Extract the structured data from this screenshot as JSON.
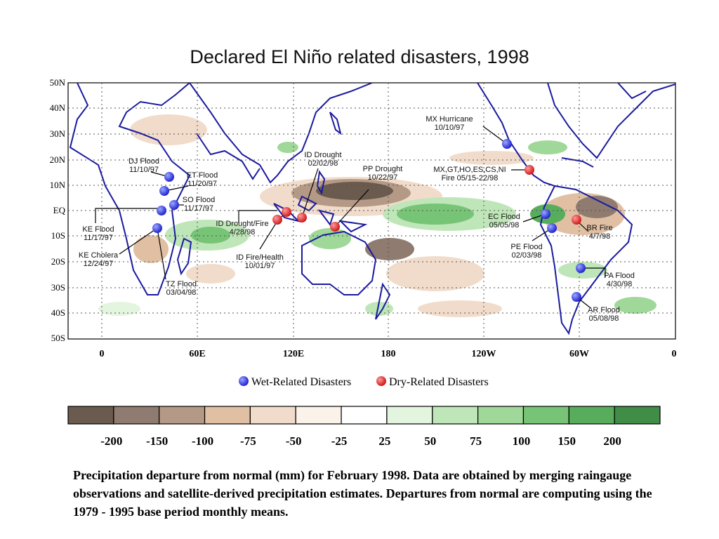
{
  "title": "Declared El Niño related disasters, 1998",
  "map": {
    "lat_labels": [
      "50N",
      "40N",
      "30N",
      "20N",
      "10N",
      "EQ",
      "10S",
      "20S",
      "30S",
      "40S",
      "50S"
    ],
    "lon_labels": [
      "0",
      "60E",
      "120E",
      "180",
      "120W",
      "60W",
      "0"
    ],
    "events": [
      {
        "type": "wet",
        "label": [
          "DJ Flood",
          "11/10/97"
        ]
      },
      {
        "type": "wet",
        "label": [
          "ET Flood",
          "11/20/97"
        ]
      },
      {
        "type": "wet",
        "label": [
          "SO Flood",
          "11/17/97"
        ]
      },
      {
        "type": "wet",
        "label": [
          "KE Flood",
          "11/17/97"
        ]
      },
      {
        "type": "wet",
        "label": [
          "KE Cholera",
          "12/24/97"
        ]
      },
      {
        "type": "wet",
        "label": [
          "TZ Flood",
          "03/04/98"
        ]
      },
      {
        "type": "dry",
        "label": [
          "ID Drought",
          "02/02/98"
        ]
      },
      {
        "type": "dry",
        "label": [
          "PP Drought",
          "10/22/97"
        ]
      },
      {
        "type": "dry",
        "label": [
          "ID Drought/Fire",
          "4/28/98"
        ]
      },
      {
        "type": "dry",
        "label": [
          "ID Fire/Health",
          "10/01/97"
        ]
      },
      {
        "type": "wet",
        "label": [
          "MX Hurricane",
          "10/10/97"
        ]
      },
      {
        "type": "dry",
        "label": [
          "MX,GT,HO,ES,CS,NI",
          "Fire 05/15-22/98"
        ]
      },
      {
        "type": "wet",
        "label": [
          "EC Flood",
          "05/05/98"
        ]
      },
      {
        "type": "wet",
        "label": [
          "PE Flood",
          "02/03/98"
        ]
      },
      {
        "type": "dry",
        "label": [
          "BR Fire",
          "4/7/98"
        ]
      },
      {
        "type": "wet",
        "label": [
          "PA Flood",
          "4/30/98"
        ]
      },
      {
        "type": "wet",
        "label": [
          "AR Flood",
          "05/08/98"
        ]
      }
    ]
  },
  "legend": {
    "wet": "Wet-Related Disasters",
    "dry": "Dry-Related Disasters",
    "wet_color": "#1a1aee",
    "dry_color": "#ee2222"
  },
  "scale": {
    "labels": [
      "-200",
      "-150",
      "-100",
      "-75",
      "-50",
      "-25",
      "25",
      "50",
      "75",
      "100",
      "150",
      "200"
    ],
    "colors": [
      "#6b5a4e",
      "#8f7b70",
      "#b49a86",
      "#e0bfa3",
      "#f1dccb",
      "#fbf2e9",
      "#ffffff",
      "#e4f5df",
      "#bfe6b8",
      "#9fd898",
      "#78c477",
      "#58ad5c",
      "#3f8d46"
    ]
  },
  "caption": "Precipitation departure from normal (mm) for February 1998.  Data are obtained by merging raingauge observations and satellite-derived precipitation estimates.  Departures from normal are computing using the 1979 - 1995 base period monthly means."
}
